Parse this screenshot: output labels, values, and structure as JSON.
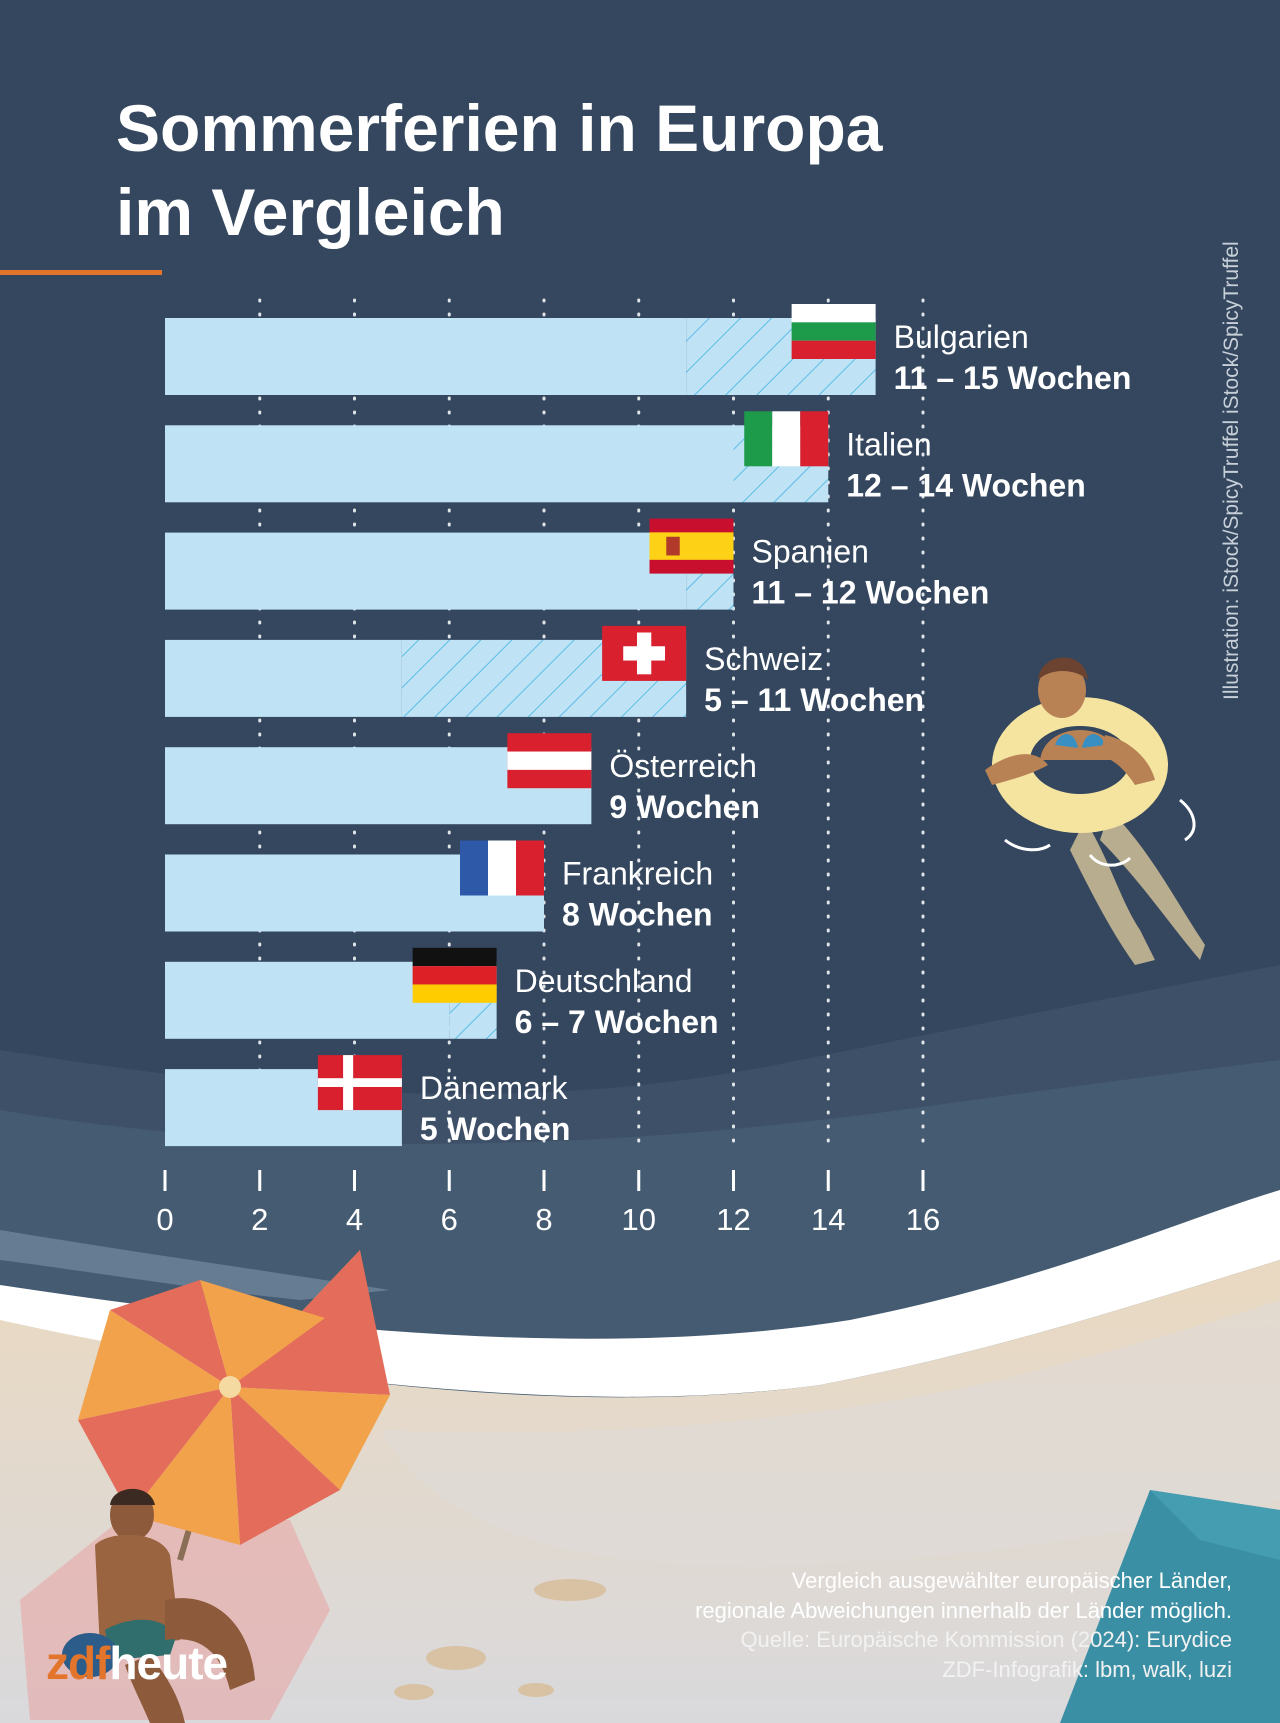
{
  "title": [
    "Sommerferien in Europa",
    "im Vergleich"
  ],
  "credit": "Illustration: iStock/SpicyTruffel iStock/SpicyTruffel",
  "footnote": {
    "note": [
      "Vergleich ausgewählter europäischer Länder,",
      "regionale Abweichungen innerhalb der Länder möglich."
    ],
    "source": "Quelle: Europäische Kommission (2024): Eurydice",
    "author": "ZDF-Infografik: lbm, walk, luzi"
  },
  "logo": {
    "part1": "zdf",
    "part2": "heute"
  },
  "colors": {
    "bar": "#bfe3f4",
    "hatch": "#5bbde8",
    "background": "#34475e",
    "accent": "#e2742c"
  },
  "chart_data": {
    "type": "bar",
    "orientation": "horizontal",
    "xlim": [
      0,
      16
    ],
    "xticks": [
      0,
      2,
      4,
      6,
      8,
      10,
      12,
      14,
      16
    ],
    "grid": "dotted vertical",
    "unit": "Wochen",
    "bars": [
      {
        "country": "Bulgarien",
        "min": 11,
        "max": 15,
        "label": "11 – 15 Wochen",
        "flag": "bulgaria-flag"
      },
      {
        "country": "Italien",
        "min": 12,
        "max": 14,
        "label": "12 – 14 Wochen",
        "flag": "italy-flag"
      },
      {
        "country": "Spanien",
        "min": 11,
        "max": 12,
        "label": "11 – 12 Wochen",
        "flag": "spain-flag"
      },
      {
        "country": "Schweiz",
        "min": 5,
        "max": 11,
        "label": "5 – 11 Wochen",
        "flag": "switzerland-flag"
      },
      {
        "country": "Österreich",
        "min": 9,
        "max": 9,
        "label": "9 Wochen",
        "flag": "austria-flag"
      },
      {
        "country": "Frankreich",
        "min": 8,
        "max": 8,
        "label": "8 Wochen",
        "flag": "france-flag"
      },
      {
        "country": "Deutschland",
        "min": 6,
        "max": 7,
        "label": "6 – 7 Wochen",
        "flag": "germany-flag"
      },
      {
        "country": "Dänemark",
        "min": 5,
        "max": 5,
        "label": "5 Wochen",
        "flag": "denmark-flag"
      }
    ]
  }
}
